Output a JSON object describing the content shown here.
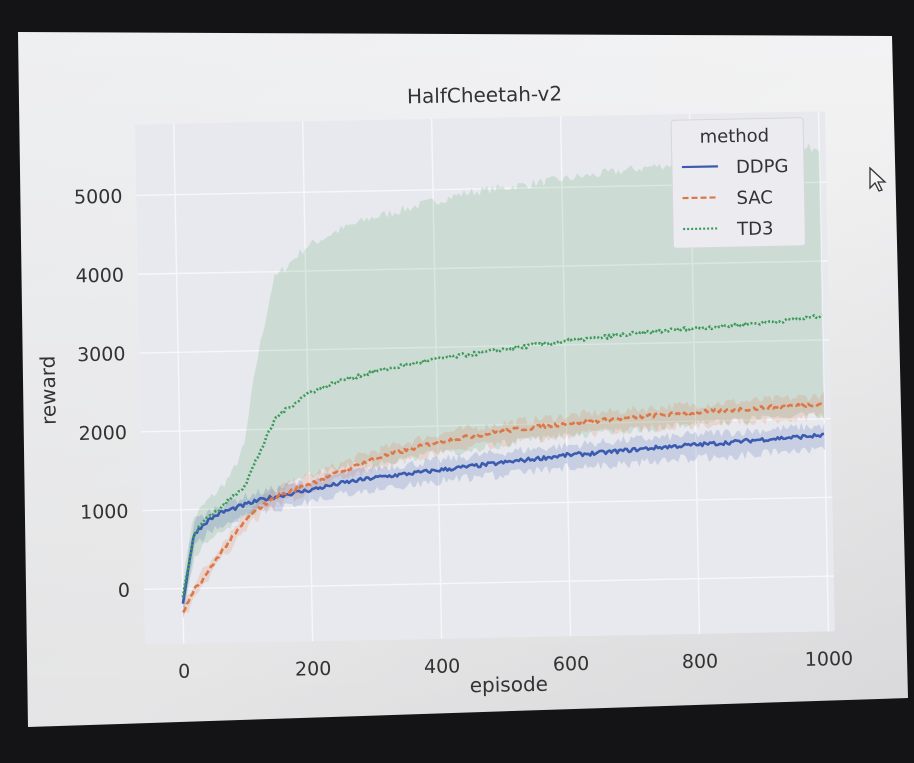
{
  "chart_data": {
    "type": "line",
    "title": "HalfCheetah-v2",
    "xlabel": "episode",
    "ylabel": "reward",
    "xlim": [
      -60,
      1010
    ],
    "ylim": [
      -700,
      5900
    ],
    "xticks": [
      0,
      200,
      400,
      600,
      800,
      1000
    ],
    "yticks": [
      0,
      1000,
      2000,
      3000,
      4000,
      5000
    ],
    "grid": true,
    "legend": {
      "title": "method",
      "position": "top-right"
    },
    "x": [
      0,
      10,
      20,
      40,
      60,
      80,
      100,
      120,
      150,
      200,
      250,
      300,
      350,
      400,
      450,
      500,
      550,
      600,
      650,
      700,
      750,
      800,
      850,
      900,
      950,
      1000
    ],
    "series": [
      {
        "name": "DDPG",
        "color": "#3a5bb0",
        "dash": "solid",
        "values": [
          -200,
          300,
          700,
          850,
          950,
          1000,
          1050,
          1100,
          1150,
          1220,
          1300,
          1360,
          1400,
          1440,
          1480,
          1520,
          1560,
          1600,
          1620,
          1650,
          1680,
          1700,
          1720,
          1750,
          1770,
          1790
        ],
        "band_lower": [
          -350,
          150,
          500,
          700,
          800,
          850,
          900,
          950,
          1000,
          1080,
          1160,
          1220,
          1260,
          1300,
          1330,
          1370,
          1400,
          1440,
          1460,
          1480,
          1510,
          1530,
          1550,
          1570,
          1590,
          1610
        ],
        "band_upper": [
          -50,
          450,
          850,
          950,
          1050,
          1100,
          1150,
          1200,
          1250,
          1330,
          1420,
          1480,
          1520,
          1560,
          1610,
          1650,
          1690,
          1720,
          1750,
          1780,
          1800,
          1830,
          1850,
          1870,
          1890,
          1910
        ]
      },
      {
        "name": "SAC",
        "color": "#dd7748",
        "dash": "dashed",
        "values": [
          -300,
          -150,
          0,
          200,
          450,
          650,
          850,
          1000,
          1150,
          1300,
          1450,
          1600,
          1700,
          1800,
          1860,
          1920,
          1960,
          2000,
          2030,
          2060,
          2090,
          2110,
          2130,
          2150,
          2170,
          2190
        ],
        "band_lower": [
          -400,
          -250,
          -100,
          100,
          350,
          550,
          750,
          900,
          1050,
          1200,
          1350,
          1480,
          1580,
          1660,
          1720,
          1770,
          1810,
          1850,
          1880,
          1900,
          1930,
          1950,
          1970,
          1990,
          2010,
          2030
        ],
        "band_upper": [
          -200,
          -50,
          100,
          300,
          550,
          750,
          950,
          1100,
          1250,
          1400,
          1550,
          1700,
          1800,
          1900,
          1960,
          2020,
          2060,
          2100,
          2130,
          2160,
          2190,
          2210,
          2230,
          2250,
          2270,
          2300
        ]
      },
      {
        "name": "TD3",
        "color": "#3e9a5a",
        "dash": "dotted",
        "values": [
          -100,
          300,
          700,
          900,
          1000,
          1150,
          1300,
          1650,
          2150,
          2450,
          2600,
          2700,
          2780,
          2850,
          2900,
          2950,
          3000,
          3050,
          3080,
          3120,
          3150,
          3180,
          3200,
          3230,
          3260,
          3300
        ],
        "band_lower": [
          -200,
          0,
          400,
          600,
          700,
          800,
          900,
          1000,
          1200,
          1400,
          1500,
          1550,
          1600,
          1650,
          1700,
          1750,
          1800,
          1850,
          1880,
          1900,
          1930,
          1960,
          1980,
          2000,
          2030,
          2050
        ],
        "band_upper": [
          0,
          600,
          900,
          1100,
          1250,
          1450,
          1800,
          2800,
          3900,
          4300,
          4500,
          4650,
          4750,
          4850,
          4950,
          5000,
          5050,
          5100,
          5150,
          5200,
          5250,
          5280,
          5300,
          5350,
          5400,
          5450
        ]
      }
    ]
  }
}
